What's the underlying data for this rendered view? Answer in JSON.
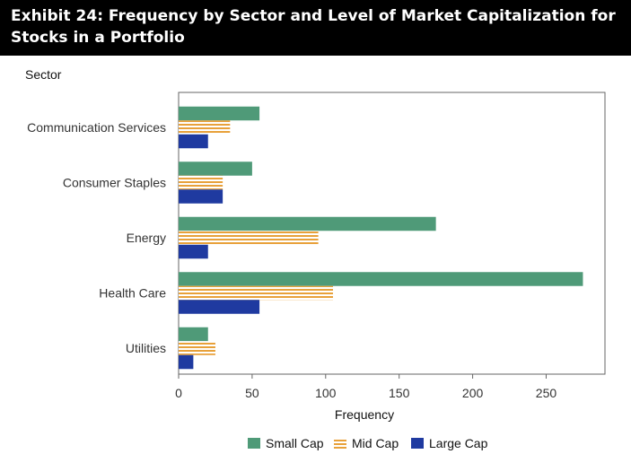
{
  "chart_data": {
    "type": "bar",
    "orientation": "horizontal",
    "title": "Exhibit 24: Frequency by Sector and Level of Market Capitalization for Stocks in a Portfolio",
    "xlabel": "Frequency",
    "ylabel": "Sector",
    "xlim": [
      0,
      290
    ],
    "xticks": [
      0,
      50,
      100,
      150,
      200,
      250
    ],
    "categories": [
      "Communication Services",
      "Consumer Staples",
      "Energy",
      "Health Care",
      "Utilities"
    ],
    "series": [
      {
        "name": "Small Cap",
        "values": [
          55,
          50,
          175,
          275,
          20
        ],
        "color": "#4f9a78",
        "pattern": "solid"
      },
      {
        "name": "Mid Cap",
        "values": [
          35,
          30,
          95,
          105,
          25
        ],
        "color": "#e8a13a",
        "pattern": "horizontal-stripes"
      },
      {
        "name": "Large Cap",
        "values": [
          20,
          30,
          20,
          55,
          10
        ],
        "color": "#1f3aa0",
        "pattern": "solid"
      }
    ],
    "legend_position": "bottom",
    "grid": false
  }
}
